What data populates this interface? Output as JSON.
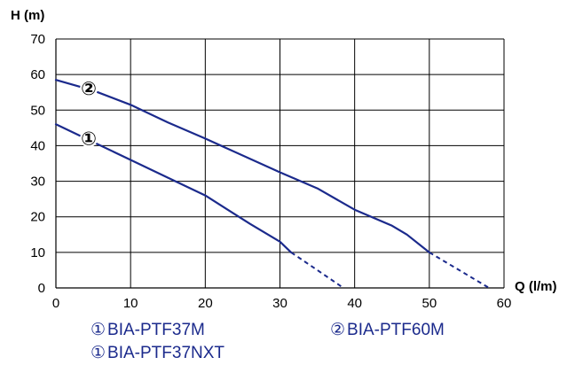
{
  "chart_data": {
    "type": "line",
    "ylabel": "H (m)",
    "xlabel": "Q (l/m)",
    "xlim": [
      0,
      60
    ],
    "ylim": [
      0,
      70
    ],
    "x_ticks": [
      0,
      10,
      20,
      30,
      40,
      50,
      60
    ],
    "y_ticks": [
      0,
      10,
      20,
      30,
      40,
      50,
      60,
      70
    ],
    "grid": true,
    "line_color": "#1b2a8c",
    "series": [
      {
        "name": "BIA-PTF37M",
        "label": "①",
        "solid": [
          [
            0,
            46
          ],
          [
            5,
            41
          ],
          [
            10,
            36
          ],
          [
            15,
            31
          ],
          [
            20,
            26
          ],
          [
            26,
            18
          ],
          [
            30,
            13
          ],
          [
            31.5,
            10
          ]
        ],
        "dashed": [
          [
            31.5,
            10
          ],
          [
            35,
            5
          ],
          [
            38.5,
            0
          ]
        ]
      },
      {
        "name": "BIA-PTF60M",
        "label": "②",
        "solid": [
          [
            0,
            58.5
          ],
          [
            5,
            55.5
          ],
          [
            10,
            51.5
          ],
          [
            15,
            46.5
          ],
          [
            20,
            42
          ],
          [
            30,
            32.5
          ],
          [
            35,
            28
          ],
          [
            40,
            22
          ],
          [
            45,
            17.5
          ],
          [
            47,
            15
          ],
          [
            50,
            10
          ]
        ],
        "dashed": [
          [
            50,
            10
          ],
          [
            54,
            5
          ],
          [
            58,
            0
          ]
        ]
      }
    ],
    "legend": [
      {
        "marker": "①",
        "text": "BIA-PTF37M"
      },
      {
        "marker": "①",
        "text": "BIA-PTF37NXT"
      },
      {
        "marker": "②",
        "text": "BIA-PTF60M"
      }
    ]
  }
}
